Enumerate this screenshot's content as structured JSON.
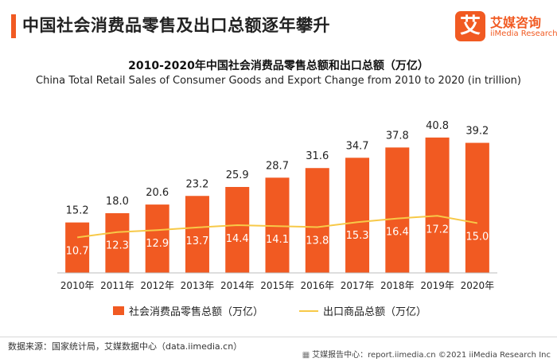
{
  "header": {
    "title": "中国社会消费品零售及出口总额逐年攀升"
  },
  "logo": {
    "mark": "艾",
    "name": "艾媒咨询",
    "english": "iiMedia Research"
  },
  "chart_data": {
    "type": "bar",
    "title": "2010-2020年中国社会消费品零售总额和出口总额（万亿）",
    "subtitle": "China Total Retail Sales of Consumer Goods and Export Change from 2010 to 2020 (in trillion)",
    "categories": [
      "2010年",
      "2011年",
      "2012年",
      "2013年",
      "2014年",
      "2015年",
      "2016年",
      "2017年",
      "2018年",
      "2019年",
      "2020年"
    ],
    "series": [
      {
        "name": "社会消费品零售总额（万亿）",
        "type": "bar",
        "color": "#f15a22",
        "values": [
          15.2,
          18.0,
          20.6,
          23.2,
          25.9,
          28.7,
          31.6,
          34.7,
          37.8,
          40.8,
          39.2
        ],
        "labels": [
          "15.2",
          "18.0",
          "20.6",
          "23.2",
          "25.9",
          "28.7",
          "31.6",
          "34.7",
          "37.8",
          "40.8",
          "39.2"
        ]
      },
      {
        "name": "出口商品总额（万亿）",
        "type": "line",
        "color": "#f7c948",
        "values": [
          10.7,
          12.3,
          12.9,
          13.7,
          14.4,
          14.1,
          13.8,
          15.3,
          16.4,
          17.2,
          15.0
        ],
        "labels": [
          "10.7",
          "12.3",
          "12.9",
          "13.7",
          "14.4",
          "14.1",
          "13.8",
          "15.3",
          "16.4",
          "17.2",
          "15.0"
        ]
      }
    ],
    "ylim": [
      0,
      45
    ],
    "grid": false,
    "legend": "bottom"
  },
  "footer": {
    "source": "数据来源：国家统计局，艾媒数据中心（data.iimedia.cn）",
    "right_icon": "chart-icon",
    "right_text": "艾媒报告中心：report.iimedia.cn   ©2021  iiMedia Research  Inc"
  }
}
